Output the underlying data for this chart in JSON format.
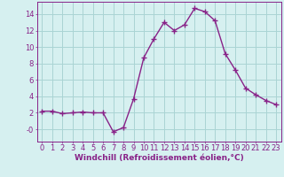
{
  "x": [
    0,
    1,
    2,
    3,
    4,
    5,
    6,
    7,
    8,
    9,
    10,
    11,
    12,
    13,
    14,
    15,
    16,
    17,
    18,
    19,
    20,
    21,
    22,
    23
  ],
  "y": [
    2.2,
    2.2,
    1.9,
    2.0,
    2.1,
    2.0,
    2.0,
    -0.3,
    0.2,
    3.7,
    8.7,
    11.0,
    13.0,
    12.0,
    12.7,
    14.7,
    14.3,
    13.2,
    9.2,
    7.2,
    5.0,
    4.2,
    3.5,
    3.0
  ],
  "line_color": "#882288",
  "marker": "+",
  "marker_size": 4,
  "bg_color": "#d6f0f0",
  "grid_color": "#aad4d4",
  "xlabel": "Windchill (Refroidissement éolien,°C)",
  "xlim": [
    -0.5,
    23.5
  ],
  "ylim": [
    -1.5,
    15.5
  ],
  "yticks": [
    0,
    2,
    4,
    6,
    8,
    10,
    12,
    14
  ],
  "ytick_labels": [
    "-0",
    "2",
    "4",
    "6",
    "8",
    "10",
    "12",
    "14"
  ],
  "xticks": [
    0,
    1,
    2,
    3,
    4,
    5,
    6,
    7,
    8,
    9,
    10,
    11,
    12,
    13,
    14,
    15,
    16,
    17,
    18,
    19,
    20,
    21,
    22,
    23
  ],
  "xlabel_fontsize": 6.5,
  "tick_fontsize": 6,
  "line_width": 1.0,
  "marker_lw": 1.0
}
